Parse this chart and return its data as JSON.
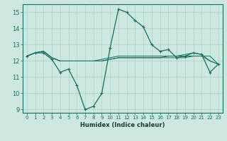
{
  "title": "",
  "xlabel": "Humidex (Indice chaleur)",
  "ylabel": "",
  "bg_color": "#cce8e0",
  "grid_color": "#aad0c8",
  "line_color": "#1a6b60",
  "xlim": [
    -0.5,
    23.5
  ],
  "ylim": [
    8.8,
    15.5
  ],
  "xticks": [
    0,
    1,
    2,
    3,
    4,
    5,
    6,
    7,
    8,
    9,
    10,
    11,
    12,
    13,
    14,
    15,
    16,
    17,
    18,
    19,
    20,
    21,
    22,
    23
  ],
  "yticks": [
    9,
    10,
    11,
    12,
    13,
    14,
    15
  ],
  "series": [
    [
      12.3,
      12.5,
      12.5,
      12.1,
      11.3,
      11.5,
      10.5,
      9.0,
      9.2,
      10.0,
      12.8,
      15.2,
      15.0,
      14.5,
      14.1,
      13.0,
      12.6,
      12.7,
      12.2,
      12.3,
      12.5,
      12.4,
      11.3,
      11.8
    ],
    [
      12.3,
      12.5,
      12.6,
      12.2,
      12.0,
      12.0,
      12.0,
      12.0,
      12.0,
      12.0,
      12.1,
      12.2,
      12.2,
      12.2,
      12.2,
      12.2,
      12.2,
      12.2,
      12.2,
      12.2,
      12.3,
      12.3,
      12.3,
      11.8
    ],
    [
      12.3,
      12.5,
      12.6,
      12.2,
      12.0,
      12.0,
      12.0,
      12.0,
      12.0,
      12.0,
      12.1,
      12.2,
      12.2,
      12.2,
      12.2,
      12.2,
      12.2,
      12.3,
      12.3,
      12.3,
      12.3,
      12.3,
      12.0,
      11.8
    ],
    [
      12.3,
      12.5,
      12.6,
      12.2,
      12.0,
      12.0,
      12.0,
      12.0,
      12.0,
      12.1,
      12.2,
      12.3,
      12.3,
      12.3,
      12.3,
      12.3,
      12.3,
      12.3,
      12.3,
      12.4,
      12.5,
      12.4,
      12.0,
      11.8
    ]
  ]
}
